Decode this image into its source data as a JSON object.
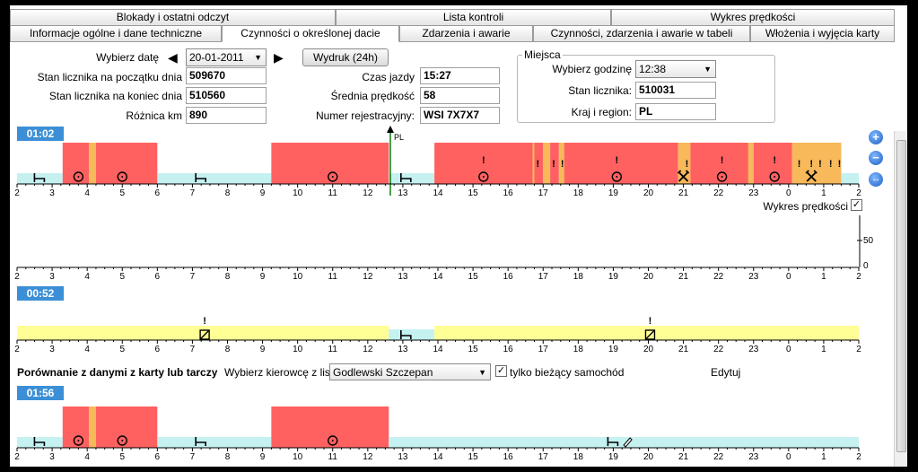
{
  "tabs_row1": [
    "Blokady i ostatni odczyt",
    "Lista kontroli",
    "Wykres prędkości"
  ],
  "tabs_row2": [
    "Informacje ogólne i dane techniczne",
    "Czynności o określonej dacie",
    "Zdarzenia i awarie",
    "Czynności, zdarzenia i awarie w tabeli",
    "Włożenia i wyjęcia karty"
  ],
  "active_tab": "Czynności o określonej dacie",
  "date": {
    "label": "Wybierz datę",
    "value": "20-01-2011"
  },
  "print_button": "Wydruk (24h)",
  "fields": {
    "odo_start_label": "Stan licznika na początku dnia",
    "odo_start": "509670",
    "odo_end_label": "Stan licznika na koniec dnia",
    "odo_end": "510560",
    "diff_label": "Różnica km",
    "diff": "890",
    "drive_time_label": "Czas jazdy",
    "drive_time": "15:27",
    "avg_speed_label": "Średnia prędkość",
    "avg_speed": "58",
    "reg_label": "Numer rejestracyjny:",
    "reg": "WSI 7X7X7"
  },
  "places": {
    "title": "Miejsca",
    "hour_label": "Wybierz godzinę",
    "hour": "12:38",
    "odo_label": "Stan licznika:",
    "odo": "510031",
    "country_label": "Kraj i region:",
    "country": "PL"
  },
  "chart1": {
    "badge": "01:02",
    "marker_label": "PL"
  },
  "speed_chart": {
    "label": "Wykres prędkości",
    "checked": true,
    "yticks": [
      "50",
      "0"
    ]
  },
  "chart2": {
    "badge": "00:52"
  },
  "compare": {
    "title": "Porównanie z danymi z karty lub tarczy",
    "driver_label": "Wybierz kierowcę z listy:",
    "driver": "Godlewski Szczepan",
    "only_vehicle_label": "tylko bieżący samochód",
    "only_vehicle_checked": true,
    "edit_label": "Edytuj"
  },
  "chart3": {
    "badge": "01:56"
  },
  "axis_ticks": [
    "2",
    "3",
    "4",
    "5",
    "6",
    "7",
    "8",
    "9",
    "10",
    "11",
    "12",
    "13",
    "14",
    "15",
    "16",
    "17",
    "18",
    "19",
    "20",
    "21",
    "22",
    "23",
    "0",
    "1",
    "2"
  ],
  "colors": {
    "driving": "#ff6161",
    "work": "#f7b95a",
    "rest": "#c5f1f1",
    "available": "#ffff96",
    "badge": "#3c8fd6"
  },
  "icons": {
    "zoom_in": "plus-icon",
    "zoom_out": "minus-icon",
    "fit": "fit-icon",
    "prev": "triangle-left-icon",
    "next": "triangle-right-icon"
  },
  "chart1_segments": [
    {
      "type": "rest",
      "from": 2,
      "to": 3.3
    },
    {
      "type": "driving",
      "from": 3.3,
      "to": 4.05
    },
    {
      "type": "work",
      "from": 4.05,
      "to": 4.25
    },
    {
      "type": "driving",
      "from": 4.25,
      "to": 6.0
    },
    {
      "type": "rest",
      "from": 6.0,
      "to": 9.25
    },
    {
      "type": "driving",
      "from": 9.25,
      "to": 12.6
    },
    {
      "type": "rest",
      "from": 12.6,
      "to": 13.9
    },
    {
      "type": "driving",
      "from": 13.9,
      "to": 16.7
    },
    {
      "type": "work",
      "from": 16.7,
      "to": 16.75
    },
    {
      "type": "driving",
      "from": 16.75,
      "to": 17.0
    },
    {
      "type": "work",
      "from": 17.0,
      "to": 17.2
    },
    {
      "type": "driving",
      "from": 17.2,
      "to": 17.45
    },
    {
      "type": "work",
      "from": 17.45,
      "to": 17.6
    },
    {
      "type": "driving",
      "from": 17.6,
      "to": 20.85
    },
    {
      "type": "work",
      "from": 20.85,
      "to": 21.2
    },
    {
      "type": "driving",
      "from": 21.2,
      "to": 22.85
    },
    {
      "type": "work",
      "from": 22.85,
      "to": 23.0
    },
    {
      "type": "driving",
      "from": 23.0,
      "to": 24.1
    },
    {
      "type": "work",
      "from": 24.1,
      "to": 25.5
    },
    {
      "type": "rest",
      "from": 25.5,
      "to": 26.0
    }
  ],
  "chart2_segments": [
    {
      "type": "available",
      "from": 2,
      "to": 12.6
    },
    {
      "type": "rest",
      "from": 12.6,
      "to": 13.9
    },
    {
      "type": "available",
      "from": 13.9,
      "to": 26.0
    }
  ],
  "chart3_segments": [
    {
      "type": "rest",
      "from": 2,
      "to": 3.3
    },
    {
      "type": "driving",
      "from": 3.3,
      "to": 4.05
    },
    {
      "type": "work",
      "from": 4.05,
      "to": 4.25
    },
    {
      "type": "driving",
      "from": 4.25,
      "to": 6.0
    },
    {
      "type": "rest",
      "from": 6.0,
      "to": 9.25
    },
    {
      "type": "driving",
      "from": 9.25,
      "to": 12.6
    },
    {
      "type": "rest",
      "from": 12.6,
      "to": 26.0
    }
  ]
}
